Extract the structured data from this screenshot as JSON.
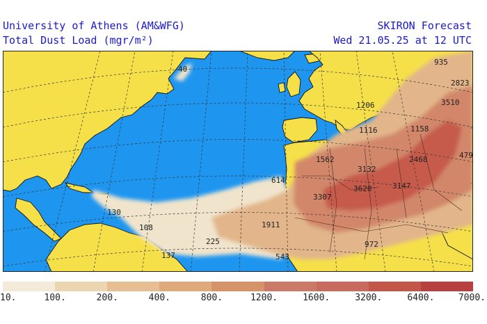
{
  "header": {
    "left_line1": "University of Athens (AM&WFG)",
    "left_line2": "Total Dust Load (mgr/m²)",
    "right_line1": "SKIRON Forecast",
    "right_line2": "Wed 21.05.25 at 12 UTC"
  },
  "colors": {
    "ocean": "#1e96f0",
    "land": "#f5e04a",
    "coast": "#111111",
    "grid": "#333333"
  },
  "values": [
    {
      "id": "v40",
      "text": "40"
    },
    {
      "id": "v935",
      "text": "935"
    },
    {
      "id": "v2823",
      "text": "2823"
    },
    {
      "id": "v3510",
      "text": "3510"
    },
    {
      "id": "v1206",
      "text": "1206"
    },
    {
      "id": "v1116",
      "text": "1116"
    },
    {
      "id": "v1158",
      "text": "1158"
    },
    {
      "id": "v479",
      "text": "479"
    },
    {
      "id": "v1562",
      "text": "1562"
    },
    {
      "id": "v3132",
      "text": "3132"
    },
    {
      "id": "v2468",
      "text": "2468"
    },
    {
      "id": "v614",
      "text": "614"
    },
    {
      "id": "v3620",
      "text": "3620"
    },
    {
      "id": "v3147",
      "text": "3147"
    },
    {
      "id": "v3307",
      "text": "3307"
    },
    {
      "id": "v130",
      "text": "130"
    },
    {
      "id": "v108",
      "text": "108"
    },
    {
      "id": "v1911",
      "text": "1911"
    },
    {
      "id": "v225",
      "text": "225"
    },
    {
      "id": "v137",
      "text": "137"
    },
    {
      "id": "v543",
      "text": "543"
    },
    {
      "id": "v972",
      "text": "972"
    }
  ],
  "legend": {
    "colors": [
      "#f3ead9",
      "#ecd6b2",
      "#e6be92",
      "#deaa7a",
      "#d69268",
      "#ca7a66",
      "#c86a5e",
      "#c25648",
      "#b8403e"
    ],
    "labels": [
      "10.",
      "100.",
      "200.",
      "400.",
      "800.",
      "1200.",
      "1600.",
      "3200.",
      "6400.",
      "7000."
    ]
  }
}
